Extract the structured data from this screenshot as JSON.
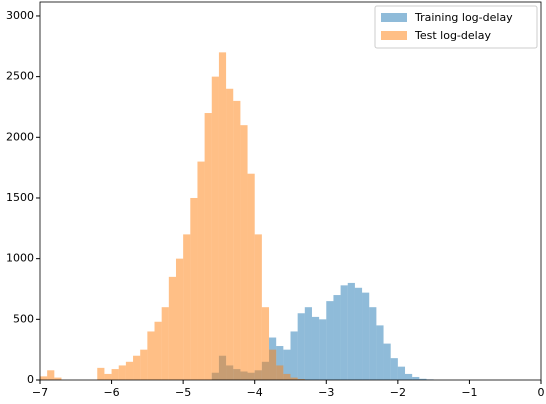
{
  "chart_data": {
    "type": "histogram",
    "bins": [
      -7,
      -6.9,
      -6.8,
      -6.7,
      -6.6,
      -6.5,
      -6.4,
      -6.3,
      -6.2,
      -6.1,
      -6,
      -5.9,
      -5.8,
      -5.7,
      -5.6,
      -5.5,
      -5.4,
      -5.3,
      -5.2,
      -5.1,
      -5,
      -4.9,
      -4.8,
      -4.7,
      -4.6,
      -4.5,
      -4.4,
      -4.3,
      -4.2,
      -4.1,
      -4,
      -3.9,
      -3.8,
      -3.7,
      -3.6,
      -3.5,
      -3.4,
      -3.3,
      -3.2,
      -3.1,
      -3,
      -2.9,
      -2.8,
      -2.7,
      -2.6,
      -2.5,
      -2.4,
      -2.3,
      -2.2,
      -2.1,
      -2,
      -1.9,
      -1.8,
      -1.7,
      -1.6,
      -1.5,
      -1.4,
      -1.3,
      -1.2,
      -1.1,
      -1,
      -0.9,
      -0.8,
      -0.7,
      -0.6,
      -0.5,
      -0.4,
      -0.3,
      -0.2,
      -0.1,
      0
    ],
    "series": [
      {
        "name": "Training log-delay",
        "color": "#1f77b4",
        "values": [
          0,
          0,
          0,
          0,
          0,
          0,
          0,
          0,
          0,
          0,
          0,
          0,
          0,
          0,
          0,
          0,
          0,
          0,
          0,
          0,
          0,
          0,
          0,
          0,
          60,
          200,
          120,
          90,
          70,
          60,
          80,
          150,
          350,
          280,
          250,
          400,
          550,
          600,
          520,
          500,
          650,
          700,
          780,
          800,
          760,
          720,
          600,
          450,
          300,
          180,
          110,
          50,
          25,
          10,
          5,
          0,
          0,
          0,
          0,
          0,
          0,
          0,
          0,
          0,
          0,
          0,
          0,
          0,
          0,
          0
        ]
      },
      {
        "name": "Test log-delay",
        "color": "#ff7f0e",
        "values": [
          30,
          80,
          20,
          0,
          0,
          0,
          0,
          0,
          100,
          50,
          90,
          120,
          150,
          200,
          250,
          400,
          480,
          600,
          850,
          1000,
          1200,
          1500,
          1800,
          2200,
          2500,
          2700,
          2400,
          2300,
          2100,
          1700,
          1200,
          600,
          250,
          120,
          50,
          20,
          8,
          0,
          0,
          0,
          0,
          0,
          0,
          0,
          0,
          0,
          0,
          0,
          0,
          0,
          0,
          0,
          0,
          0,
          0,
          0,
          0,
          0,
          0,
          0,
          0,
          0,
          0,
          0,
          0,
          0,
          0,
          0,
          0,
          0
        ]
      }
    ],
    "xlim": [
      -7,
      0
    ],
    "xticks": [
      {
        "value": -7,
        "label": "−7"
      },
      {
        "value": -6,
        "label": "−6"
      },
      {
        "value": -5,
        "label": "−5"
      },
      {
        "value": -4,
        "label": "−4"
      },
      {
        "value": -3,
        "label": "−3"
      },
      {
        "value": -2,
        "label": "−2"
      },
      {
        "value": -1,
        "label": "−1"
      },
      0
    ],
    "ylim": [
      0,
      3115
    ],
    "yticks": [
      0,
      500,
      1000,
      1500,
      2000,
      2500,
      3000
    ],
    "legend": "upper right"
  }
}
